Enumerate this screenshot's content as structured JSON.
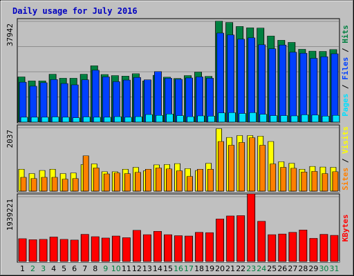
{
  "chart_data": {
    "type": "bar",
    "title": "Daily usage for July 2016",
    "colors": {
      "background": "#ffffff",
      "frame": "#c0c0c0",
      "plot": "#c0c0c0",
      "grid": "#8e8e8e",
      "title": "#0000c0",
      "hits": "#008040",
      "files": "#0040ff",
      "pages": "#00e0ff",
      "visits": "#ffff00",
      "sites": "#ff8000",
      "kbytes": "#ff0000",
      "weekday_label": "#000000",
      "weekend_label": "#008040"
    },
    "days": [
      "1",
      "2",
      "3",
      "4",
      "5",
      "6",
      "7",
      "8",
      "9",
      "10",
      "11",
      "12",
      "13",
      "14",
      "15",
      "16",
      "17",
      "18",
      "19",
      "20",
      "21",
      "22",
      "23",
      "24",
      "25",
      "26",
      "27",
      "28",
      "29",
      "30",
      "31"
    ],
    "weekend": [
      false,
      true,
      true,
      false,
      false,
      false,
      false,
      false,
      true,
      true,
      false,
      false,
      false,
      false,
      false,
      true,
      true,
      false,
      false,
      false,
      false,
      false,
      true,
      true,
      false,
      false,
      false,
      false,
      false,
      true,
      true
    ],
    "panels": [
      {
        "ymax_label": "37942",
        "ymax": 37942,
        "legend": [
          "Pages",
          "Files",
          "Hits"
        ],
        "series": [
          {
            "name": "Hits",
            "values": [
              17000,
              15500,
              15500,
              18000,
              16500,
              16500,
              18000,
              21200,
              17900,
              17500,
              17300,
              18200,
              15500,
              17600,
              16900,
              16400,
              17500,
              18800,
              17200,
              38000,
              37500,
              36000,
              35500,
              35400,
              32400,
              30800,
              30000,
              27400,
              26700,
              26600,
              27300
            ]
          },
          {
            "name": "Files",
            "values": [
              15000,
              13500,
              14800,
              16000,
              14500,
              14000,
              15900,
              19500,
              17000,
              15200,
              15800,
              16800,
              15900,
              19000,
              16500,
              16100,
              16600,
              17000,
              16500,
              33500,
              32800,
              31200,
              31700,
              29100,
              27600,
              29000,
              26300,
              25900,
              24000,
              24600,
              25700
            ]
          },
          {
            "name": "Pages",
            "values": [
              1800,
              1800,
              1800,
              1900,
              1800,
              1600,
              1900,
              1800,
              1800,
              2000,
              1800,
              2000,
              2800,
              2500,
              3000,
              2400,
              2000,
              2300,
              2200,
              3400,
              3500,
              3200,
              3500,
              2900,
              2400,
              2400,
              2300,
              2700,
              2600,
              2200,
              2500
            ]
          }
        ]
      },
      {
        "ymax_label": "2037",
        "ymax": 2037,
        "legend": [
          "Sites",
          "Visits"
        ],
        "series": [
          {
            "name": "Visits",
            "values": [
              700,
              560,
              660,
              700,
              560,
              580,
              850,
              870,
              620,
              620,
              700,
              760,
              650,
              840,
              850,
              880,
              720,
              660,
              890,
              2000,
              1720,
              1780,
              1780,
              1760,
              1590,
              940,
              890,
              700,
              790,
              770,
              760
            ]
          },
          {
            "name": "Sites",
            "values": [
              440,
              400,
              440,
              440,
              380,
              400,
              1130,
              740,
              550,
              580,
              560,
              600,
              700,
              740,
              710,
              650,
              470,
              700,
              700,
              1590,
              1470,
              1560,
              1710,
              1470,
              870,
              760,
              730,
              610,
              630,
              560,
              620
            ]
          }
        ]
      },
      {
        "ymax_label": "1939221",
        "ymax": 1939221,
        "legend": [
          "KBytes"
        ],
        "series": [
          {
            "name": "KBytes",
            "values": [
              680000,
              650000,
              660000,
              730000,
              660000,
              640000,
              810000,
              740000,
              700000,
              760000,
              710000,
              930000,
              800000,
              900000,
              800000,
              770000,
              760000,
              870000,
              860000,
              1270000,
              1360000,
              1370000,
              2020000,
              1200000,
              800000,
              820000,
              870000,
              940000,
              690000,
              810000,
              780000
            ]
          }
        ]
      }
    ]
  }
}
